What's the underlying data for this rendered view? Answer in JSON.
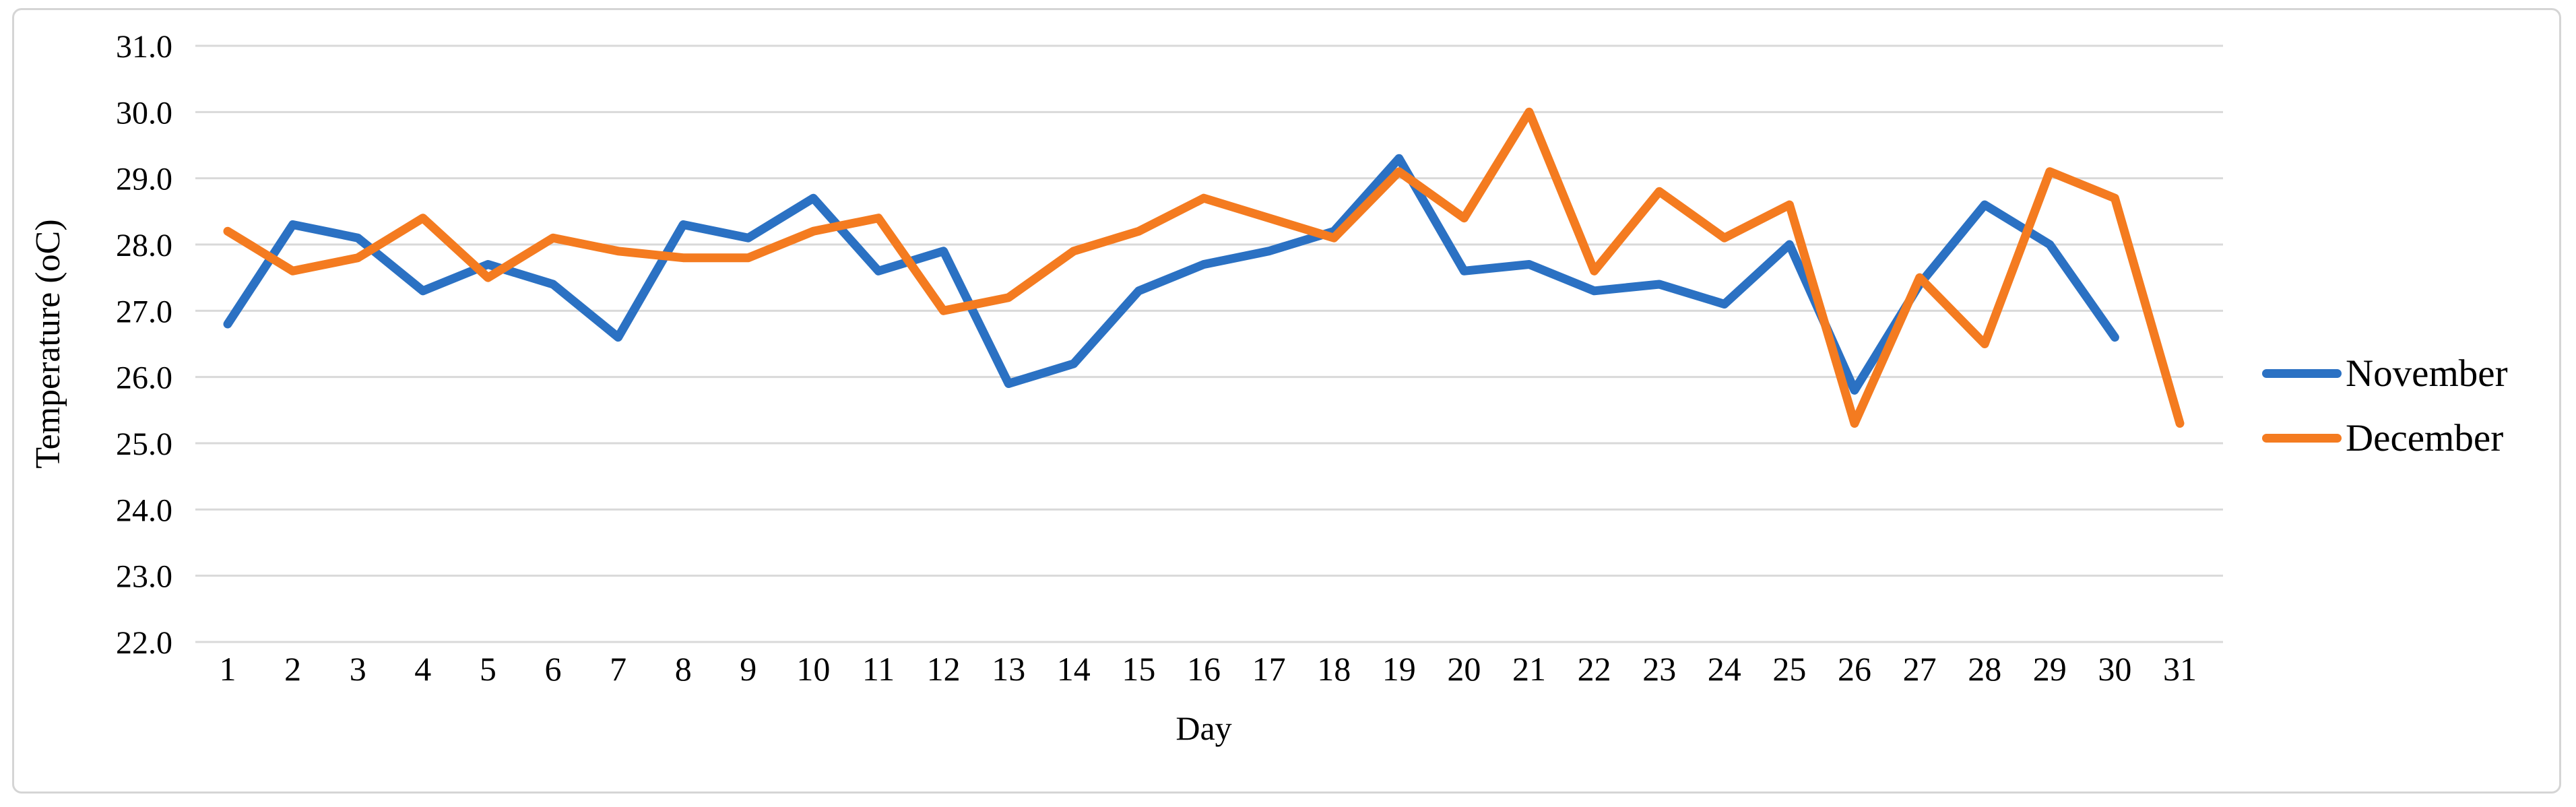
{
  "colors": {
    "november_line": "#2b71c3",
    "december_line": "#f47b20",
    "gridline": "#d9d9d9",
    "frame_border": "#d5d5d5",
    "text": "#000000"
  },
  "chart_data": {
    "type": "line",
    "title": "",
    "xlabel": "Day",
    "ylabel": "Temperature (oC)",
    "x": [
      1,
      2,
      3,
      4,
      5,
      6,
      7,
      8,
      9,
      10,
      11,
      12,
      13,
      14,
      15,
      16,
      17,
      18,
      19,
      20,
      21,
      22,
      23,
      24,
      25,
      26,
      27,
      28,
      29,
      30,
      31
    ],
    "series": [
      {
        "name": "November",
        "color": "#2b71c3",
        "values": [
          26.8,
          28.3,
          28.1,
          27.3,
          27.7,
          27.4,
          26.6,
          28.3,
          28.1,
          28.7,
          27.6,
          27.9,
          25.9,
          26.2,
          27.3,
          27.7,
          27.9,
          28.2,
          29.3,
          27.6,
          27.7,
          27.3,
          27.4,
          27.1,
          28.0,
          25.8,
          27.4,
          28.6,
          28.0,
          26.6
        ]
      },
      {
        "name": "December",
        "color": "#f47b20",
        "values": [
          28.2,
          27.6,
          27.8,
          28.4,
          27.5,
          28.1,
          27.9,
          27.8,
          27.8,
          28.2,
          28.4,
          27.0,
          27.2,
          27.9,
          28.2,
          28.7,
          28.4,
          28.1,
          29.1,
          28.4,
          30.0,
          27.6,
          28.8,
          28.1,
          28.6,
          25.3,
          27.5,
          26.5,
          29.1,
          28.7,
          25.3
        ]
      }
    ],
    "ylim": [
      22.0,
      31.0
    ],
    "ytick_step": 1.0,
    "yticks": [
      "22.0",
      "23.0",
      "24.0",
      "25.0",
      "26.0",
      "27.0",
      "28.0",
      "29.0",
      "30.0",
      "31.0"
    ],
    "grid": "horizontal",
    "legend_position": "right"
  }
}
